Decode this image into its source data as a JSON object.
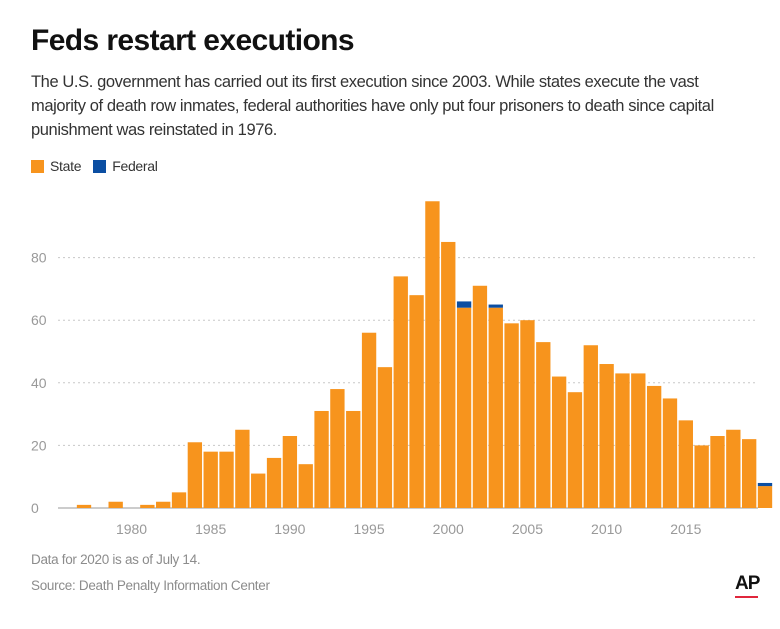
{
  "title": "Feds restart executions",
  "subtitle": "The U.S. government has carried out its first execution since 2003. While states execute the vast majority of death row inmates, federal authorities have only put four prisoners to death since capital punishment was reinstated in 1976.",
  "notes": {
    "data_note": "Data for 2020 is as of July 14.",
    "source": "Source: Death Penalty Information Center"
  },
  "logo": {
    "text": "AP"
  },
  "colors": {
    "state": "#f7941d",
    "federal": "#0b4ea2",
    "grid": "#c8c8c8",
    "tick": "#999999"
  },
  "chart_data": {
    "type": "bar",
    "stacked": true,
    "x": [
      1976,
      1977,
      1978,
      1979,
      1980,
      1981,
      1982,
      1983,
      1984,
      1985,
      1986,
      1987,
      1988,
      1989,
      1990,
      1991,
      1992,
      1993,
      1994,
      1995,
      1996,
      1997,
      1998,
      1999,
      2000,
      2001,
      2002,
      2003,
      2004,
      2005,
      2006,
      2007,
      2008,
      2009,
      2010,
      2011,
      2012,
      2013,
      2014,
      2015,
      2016,
      2017,
      2018,
      2019,
      2020
    ],
    "series": [
      {
        "name": "State",
        "values": [
          0,
          1,
          0,
          2,
          0,
          1,
          2,
          5,
          21,
          18,
          18,
          25,
          11,
          16,
          23,
          14,
          31,
          38,
          31,
          56,
          45,
          74,
          68,
          98,
          85,
          64,
          71,
          64,
          59,
          60,
          53,
          42,
          37,
          52,
          46,
          43,
          43,
          39,
          35,
          28,
          20,
          23,
          25,
          22,
          7
        ]
      },
      {
        "name": "Federal",
        "values": [
          0,
          0,
          0,
          0,
          0,
          0,
          0,
          0,
          0,
          0,
          0,
          0,
          0,
          0,
          0,
          0,
          0,
          0,
          0,
          0,
          0,
          0,
          0,
          0,
          0,
          2,
          0,
          1,
          0,
          0,
          0,
          0,
          0,
          0,
          0,
          0,
          0,
          0,
          0,
          0,
          0,
          0,
          0,
          0,
          1
        ]
      }
    ],
    "x_ticks": [
      "1980",
      "1985",
      "1990",
      "1995",
      "2000",
      "2005",
      "2010",
      "2015"
    ],
    "y_ticks": [
      "0",
      "20",
      "40",
      "60",
      "80"
    ],
    "ylim": [
      0,
      100
    ],
    "grid": true,
    "legend_position": "top-left"
  }
}
